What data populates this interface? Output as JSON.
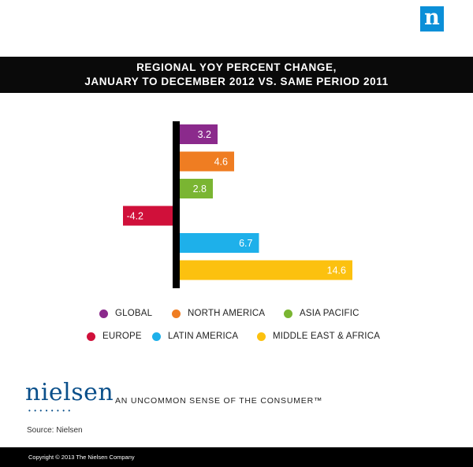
{
  "header": {
    "logo_letter": "n",
    "title_line1": "REGIONAL YOY PERCENT CHANGE,",
    "title_line2": "JANUARY TO DECEMBER 2012 VS. SAME PERIOD 2011"
  },
  "chart_data": {
    "type": "bar",
    "orientation": "horizontal",
    "title": "REGIONAL YOY PERCENT CHANGE, JANUARY TO DECEMBER 2012 VS. SAME PERIOD 2011",
    "categories": [
      "GLOBAL",
      "NORTH AMERICA",
      "ASIA PACIFIC",
      "EUROPE",
      "LATIN AMERICA",
      "MIDDLE EAST & AFRICA"
    ],
    "values": [
      3.2,
      4.6,
      2.8,
      -4.2,
      6.7,
      14.6
    ],
    "labels": [
      "3.2",
      "4.6",
      "2.8",
      "-4.2",
      "6.7",
      "14.6"
    ],
    "colors": [
      "#8b2a8c",
      "#ef7d22",
      "#7ab532",
      "#d0103a",
      "#1eb0ea",
      "#fcc10f"
    ],
    "xlabel": "",
    "ylabel": "",
    "xlim": [
      -4.2,
      14.6
    ],
    "grid": false,
    "legend_position": "bottom"
  },
  "legend": {
    "items": [
      {
        "label": "GLOBAL",
        "color": "#8b2a8c"
      },
      {
        "label": "NORTH AMERICA",
        "color": "#ef7d22"
      },
      {
        "label": "ASIA PACIFIC",
        "color": "#7ab532"
      },
      {
        "label": "EUROPE",
        "color": "#d0103a"
      },
      {
        "label": "LATIN AMERICA",
        "color": "#1eb0ea"
      },
      {
        "label": "MIDDLE EAST & AFRICA",
        "color": "#fcc10f"
      }
    ]
  },
  "brand": {
    "name": "nielsen",
    "dots": "••••••••",
    "tagline": "AN UNCOMMON SENSE OF THE CONSUMER™",
    "color": "#0a4f8a"
  },
  "source": "Source: Nielsen",
  "footer": "Copyright © 2013 The Nielsen Company"
}
